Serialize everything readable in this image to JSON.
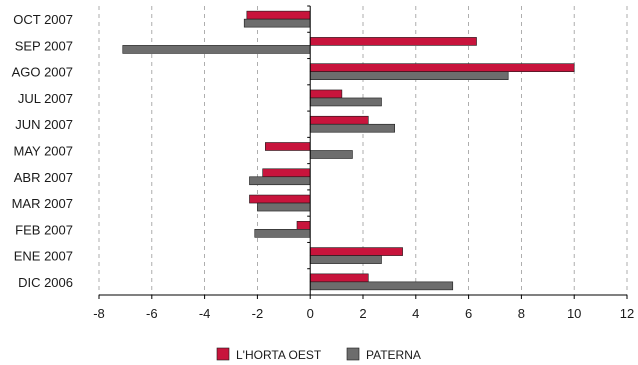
{
  "chart_data": {
    "type": "bar",
    "orientation": "horizontal",
    "categories": [
      "OCT 2007",
      "SEP 2007",
      "AGO 2007",
      "JUL 2007",
      "JUN 2007",
      "MAY 2007",
      "ABR 2007",
      "MAR 2007",
      "FEB 2007",
      "ENE 2007",
      "DIC 2006"
    ],
    "series": [
      {
        "name": "L'HORTA OEST",
        "color": "#c8143c",
        "values": [
          -2.4,
          6.3,
          10.0,
          1.2,
          2.2,
          -1.7,
          -1.8,
          -2.3,
          -0.5,
          3.5,
          2.2
        ]
      },
      {
        "name": "PATERNA",
        "color": "#6d6d6d",
        "values": [
          -2.5,
          -7.1,
          7.5,
          2.7,
          3.2,
          1.6,
          -2.3,
          -2.0,
          -2.1,
          2.7,
          5.4
        ]
      }
    ],
    "xlim": [
      -8,
      12
    ],
    "x_ticks": [
      "-8",
      "-6",
      "-4",
      "-2",
      "0",
      "2",
      "4",
      "6",
      "8",
      "10",
      "12"
    ],
    "grid": "vertical dashed",
    "legend": "bottom",
    "title": "",
    "xlabel": "",
    "ylabel": ""
  }
}
